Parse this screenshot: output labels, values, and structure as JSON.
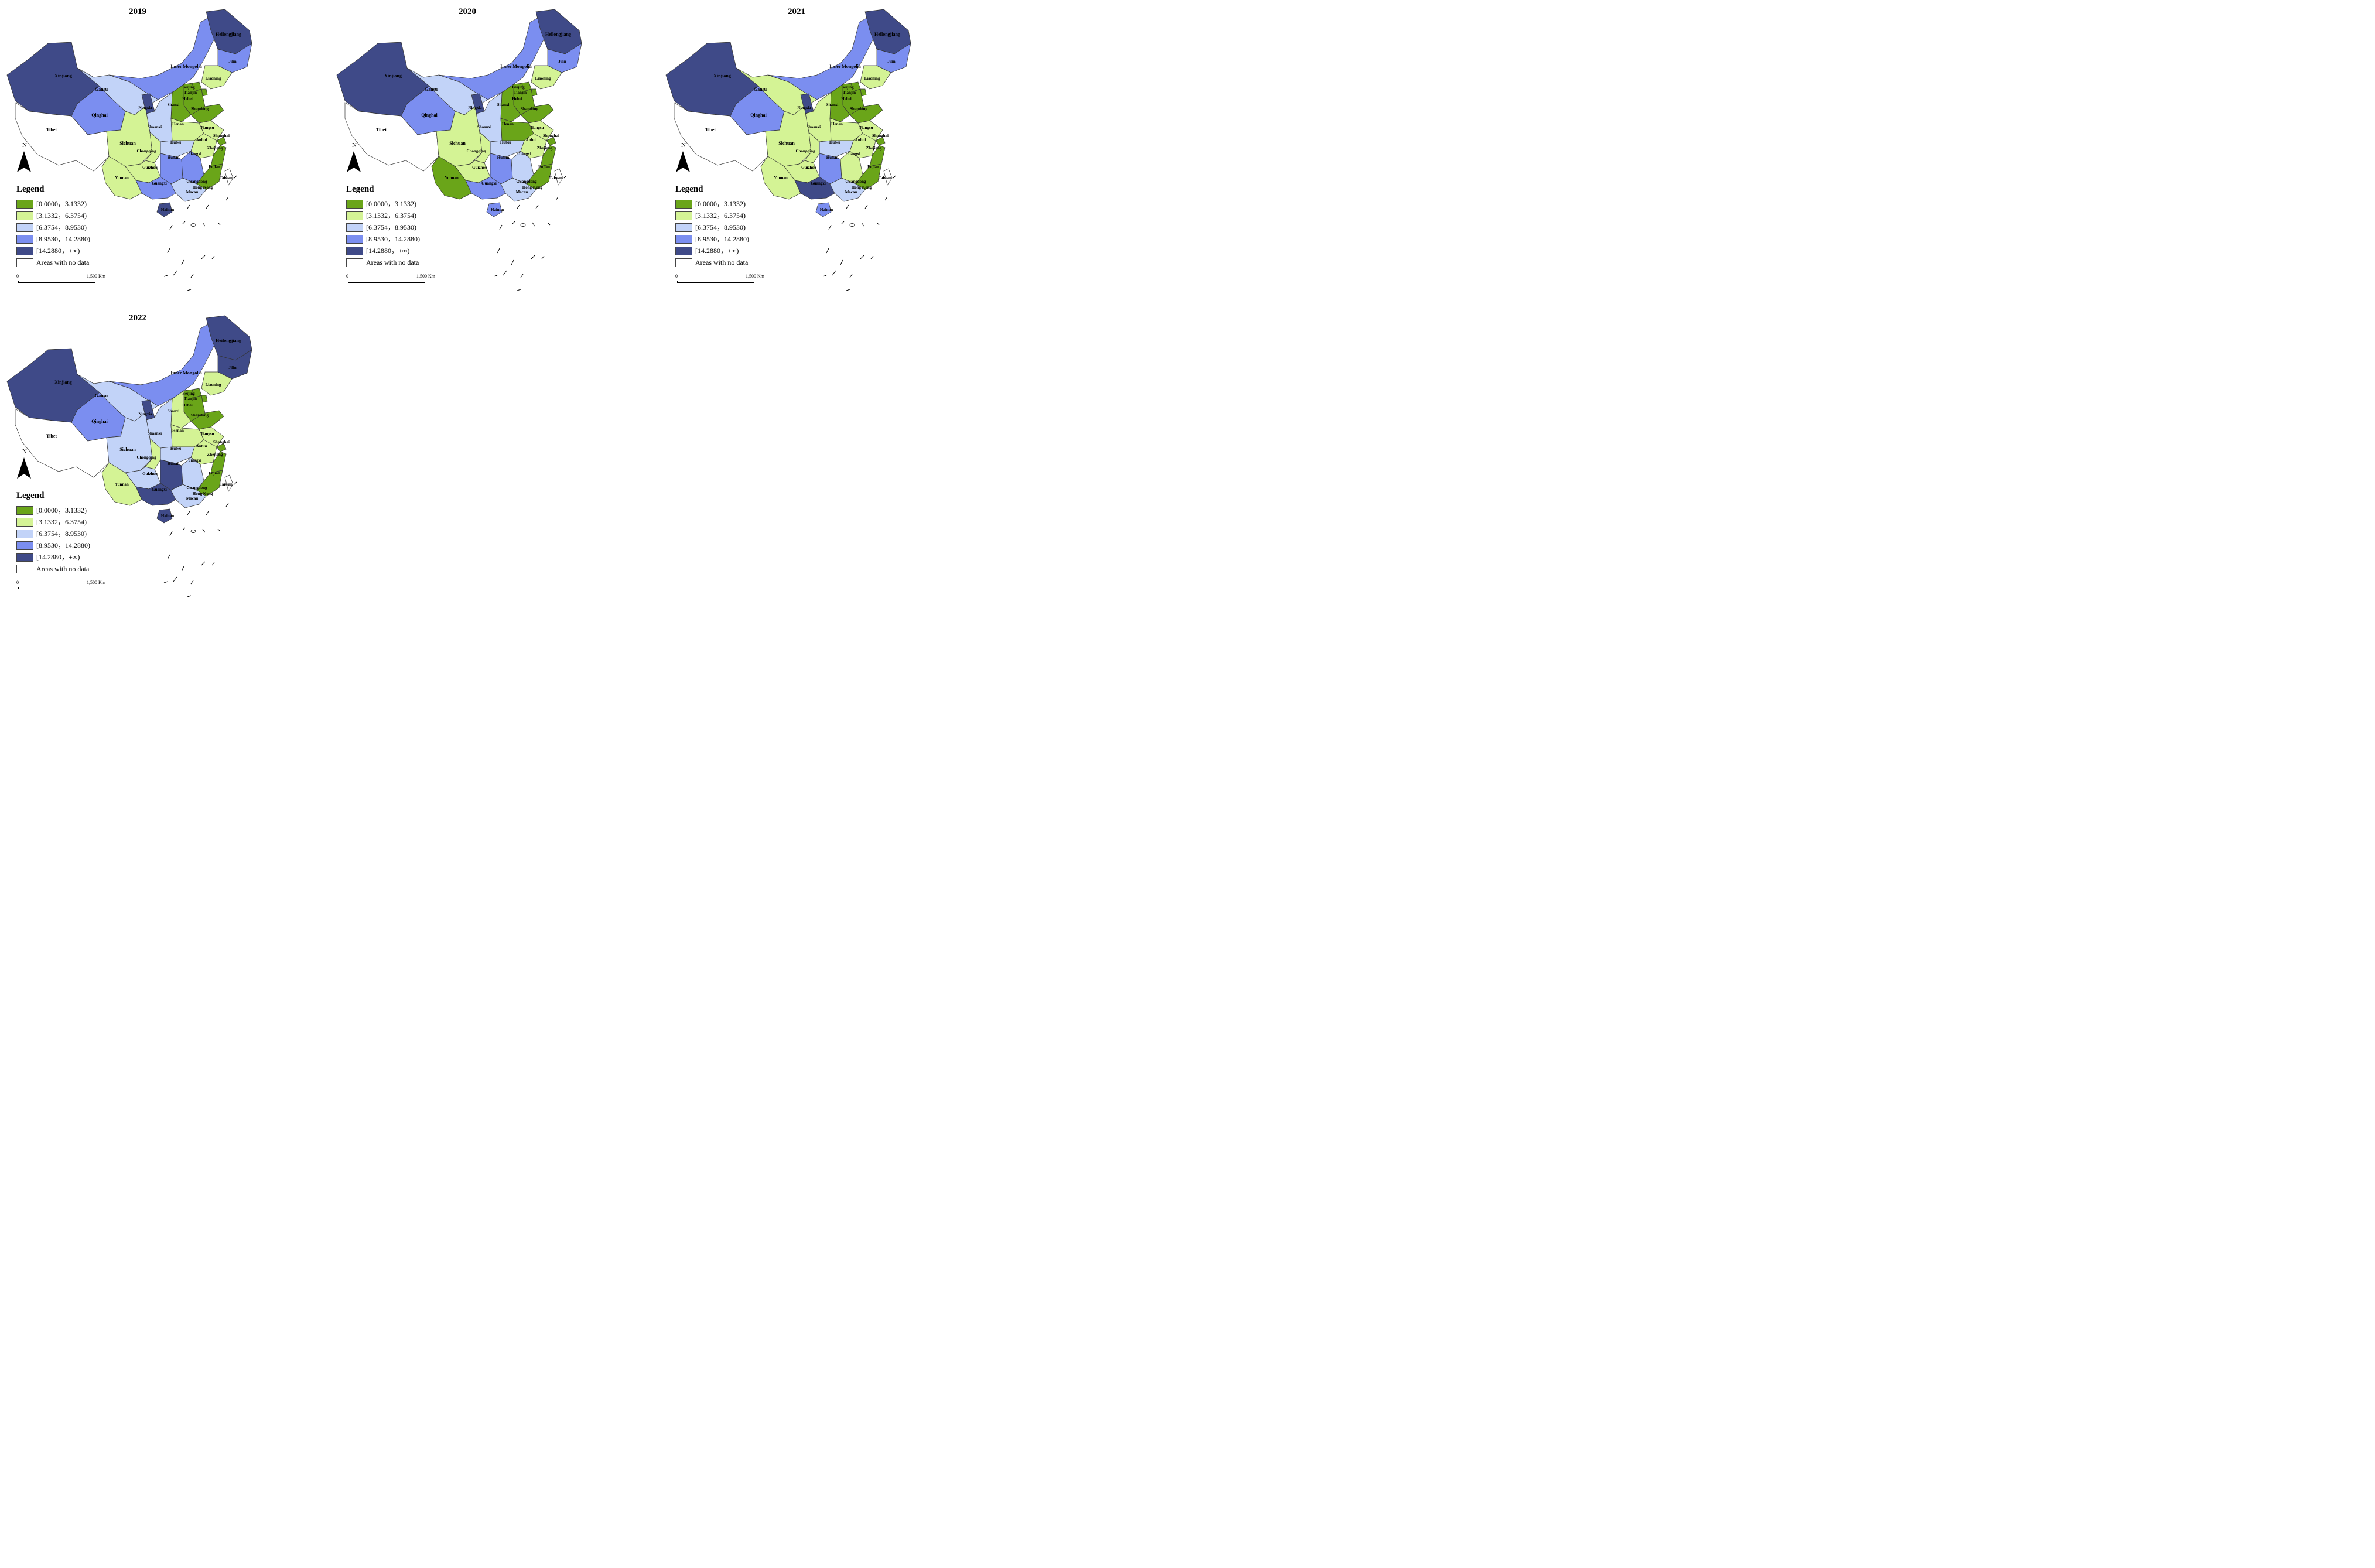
{
  "panels": [
    {
      "year": "2019",
      "regions": {
        "Xinjiang": "c5",
        "Tibet": "c0",
        "Qinghai": "c4",
        "Gansu": "c3",
        "InnerMongolia": "c4",
        "Heilongjiang": "c5",
        "Jilin": "c4",
        "Liaoning": "c2",
        "Beijing": "c1",
        "Tianjin": "c1",
        "Hebei": "c1",
        "Shanxi": "c1",
        "Shandong": "c1",
        "Ningxia": "c5",
        "Shaanxi": "c3",
        "Henan": "c2",
        "Jiangsu": "c2",
        "Shanghai": "c1",
        "Anhui": "c2",
        "Hubei": "c3",
        "Zhejiang": "c1",
        "Sichuan": "c2",
        "Chongqing": "c2",
        "Hunan": "c4",
        "Jiangxi": "c4",
        "Fujian": "c1",
        "Guizhou": "c2",
        "Yunnan": "c2",
        "Guangxi": "c4",
        "Guangdong": "c3",
        "Hainan": "c5",
        "Taiwan": "c0"
      }
    },
    {
      "year": "2020",
      "regions": {
        "Xinjiang": "c5",
        "Tibet": "c0",
        "Qinghai": "c4",
        "Gansu": "c3",
        "InnerMongolia": "c4",
        "Heilongjiang": "c5",
        "Jilin": "c4",
        "Liaoning": "c2",
        "Beijing": "c1",
        "Tianjin": "c1",
        "Hebei": "c1",
        "Shanxi": "c1",
        "Shandong": "c1",
        "Ningxia": "c5",
        "Shaanxi": "c3",
        "Henan": "c1",
        "Jiangsu": "c2",
        "Shanghai": "c1",
        "Anhui": "c2",
        "Hubei": "c3",
        "Zhejiang": "c1",
        "Sichuan": "c2",
        "Chongqing": "c2",
        "Hunan": "c4",
        "Jiangxi": "c3",
        "Fujian": "c1",
        "Guizhou": "c2",
        "Yunnan": "c1",
        "Guangxi": "c4",
        "Guangdong": "c3",
        "Hainan": "c4",
        "Taiwan": "c0"
      }
    },
    {
      "year": "2021",
      "regions": {
        "Xinjiang": "c5",
        "Tibet": "c0",
        "Qinghai": "c4",
        "Gansu": "c2",
        "InnerMongolia": "c4",
        "Heilongjiang": "c5",
        "Jilin": "c4",
        "Liaoning": "c2",
        "Beijing": "c1",
        "Tianjin": "c1",
        "Hebei": "c1",
        "Shanxi": "c1",
        "Shandong": "c1",
        "Ningxia": "c5",
        "Shaanxi": "c2",
        "Henan": "c2",
        "Jiangsu": "c2",
        "Shanghai": "c1",
        "Anhui": "c2",
        "Hubei": "c3",
        "Zhejiang": "c1",
        "Sichuan": "c2",
        "Chongqing": "c2",
        "Hunan": "c4",
        "Jiangxi": "c2",
        "Fujian": "c1",
        "Guizhou": "c2",
        "Yunnan": "c2",
        "Guangxi": "c5",
        "Guangdong": "c3",
        "Hainan": "c4",
        "Taiwan": "c0"
      }
    },
    {
      "year": "2022",
      "regions": {
        "Xinjiang": "c5",
        "Tibet": "c0",
        "Qinghai": "c4",
        "Gansu": "c3",
        "InnerMongolia": "c4",
        "Heilongjiang": "c5",
        "Jilin": "c5",
        "Liaoning": "c2",
        "Beijing": "c1",
        "Tianjin": "c1",
        "Hebei": "c1",
        "Shanxi": "c2",
        "Shandong": "c1",
        "Ningxia": "c5",
        "Shaanxi": "c3",
        "Henan": "c2",
        "Jiangsu": "c2",
        "Shanghai": "c1",
        "Anhui": "c2",
        "Hubei": "c3",
        "Zhejiang": "c1",
        "Sichuan": "c3",
        "Chongqing": "c2",
        "Hunan": "c5",
        "Jiangxi": "c3",
        "Fujian": "c1",
        "Guizhou": "c3",
        "Yunnan": "c2",
        "Guangxi": "c5",
        "Guangdong": "c3",
        "Hainan": "c5",
        "Taiwan": "c0"
      }
    }
  ],
  "region_labels": {
    "Xinjiang": "Xinjiang",
    "Tibet": "Tibet",
    "Qinghai": "Qinghai",
    "Gansu": "Gansu",
    "InnerMongolia": "Inner Mongolia",
    "Heilongjiang": "Heilongjiang",
    "Jilin": "Jilin",
    "Liaoning": "Liaoning",
    "Beijing": "Beijing",
    "Tianjin": "Tianjin",
    "Hebei": "Hebei",
    "Shanxi": "Shanxi",
    "Shandong": "Shandong",
    "Ningxia": "Ningxia",
    "Shaanxi": "Shaanxi",
    "Henan": "Henan",
    "Jiangsu": "Jiangsu",
    "Shanghai": "Shanghai",
    "Anhui": "Anhui",
    "Hubei": "Hubei",
    "Zhejiang": "Zhejiang",
    "Sichuan": "Sichuan",
    "Chongqing": "Chongqing",
    "Hunan": "Hunan",
    "Jiangxi": "Jiangxi",
    "Fujian": "Fujian",
    "Guizhou": "Guizhou",
    "Yunnan": "Yunnan",
    "Guangxi": "Guangxi",
    "Guangdong": "Guangdong",
    "Hainan": "Hainan",
    "Taiwan": "Taiwan",
    "HongKong": "Hong Kong",
    "Macau": "Macau"
  },
  "legend": {
    "title": "Legend",
    "items": [
      {
        "class": "c1",
        "label": "[0.0000，3.1332)",
        "color": "#6aa519"
      },
      {
        "class": "c2",
        "label": "[3.1332，6.3754)",
        "color": "#d4f395"
      },
      {
        "class": "c3",
        "label": "[6.3754，8.9530)",
        "color": "#c2d3f8"
      },
      {
        "class": "c4",
        "label": "[8.9530，14.2880)",
        "color": "#7b8ef0"
      },
      {
        "class": "c5",
        "label": "[14.2880，+∞)",
        "color": "#3f4a88"
      },
      {
        "class": "c0",
        "label": "Areas with no data",
        "color": "#ffffff"
      }
    ]
  },
  "scale": {
    "zero": "0",
    "end": "1,500 Km"
  },
  "north_label": "N"
}
